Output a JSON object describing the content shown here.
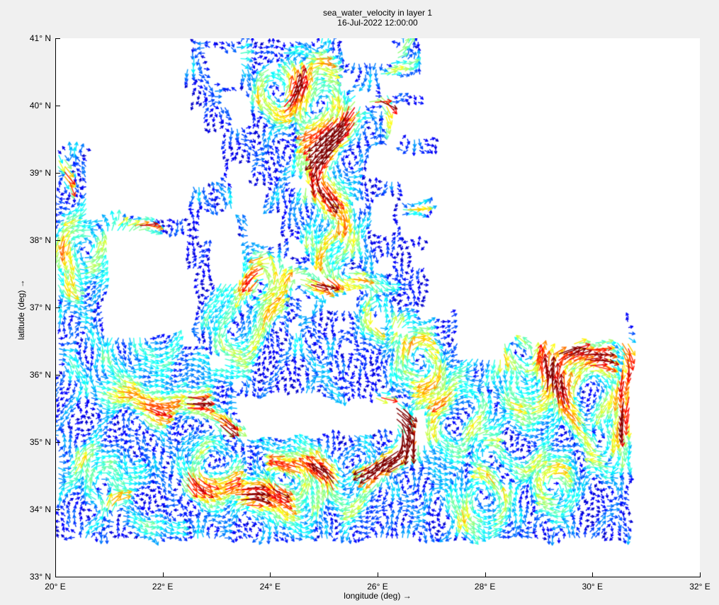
{
  "chart_data": {
    "type": "quiver",
    "title": "sea_water_velocity in layer 1",
    "subtitle": "16-Jul-2022 12:00:00",
    "colormap": "jet",
    "background": "#ffffff",
    "figure_background": "#f0f0f0",
    "x_axis": {
      "label": "longitude (deg) →",
      "min": 20,
      "max": 32,
      "ticks": [
        {
          "v": 20,
          "label": "20° E"
        },
        {
          "v": 22,
          "label": "22° E"
        },
        {
          "v": 24,
          "label": "24° E"
        },
        {
          "v": 26,
          "label": "26° E"
        },
        {
          "v": 28,
          "label": "28° E"
        },
        {
          "v": 30,
          "label": "30° E"
        },
        {
          "v": 32,
          "label": "32° E"
        }
      ]
    },
    "y_axis": {
      "label": "latitude (deg) →",
      "min": 33,
      "max": 41,
      "ticks": [
        {
          "v": 33,
          "label": "33° N"
        },
        {
          "v": 34,
          "label": "34° N"
        },
        {
          "v": 35,
          "label": "35° N"
        },
        {
          "v": 36,
          "label": "36° N"
        },
        {
          "v": 37,
          "label": "37° N"
        },
        {
          "v": 38,
          "label": "38° N"
        },
        {
          "v": 39,
          "label": "39° N"
        },
        {
          "v": 40,
          "label": "40° N"
        },
        {
          "v": 41,
          "label": "41° N"
        }
      ]
    },
    "grid": {
      "lon_step": 0.1,
      "lat_step": 0.08
    },
    "map": {
      "extent": {
        "lon": [
          20.07,
          30.72
        ],
        "lat": [
          33.58,
          40.97
        ]
      },
      "land": [
        [
          20.0,
          38.35,
          22.48,
          41.05
        ],
        [
          22.45,
          39.3,
          22.85,
          40.12
        ],
        [
          22.45,
          38.8,
          23.1,
          39.58
        ],
        [
          23.2,
          38.85,
          23.65,
          39.15
        ],
        [
          22.82,
          40.28,
          23.38,
          40.85
        ],
        [
          23.05,
          39.66,
          23.58,
          40.14
        ],
        [
          23.98,
          40.46,
          24.24,
          40.66
        ],
        [
          25.3,
          40.26,
          25.6,
          40.48
        ],
        [
          25.6,
          40.02,
          25.88,
          40.22
        ],
        [
          25.3,
          40.66,
          26.28,
          41.05
        ],
        [
          26.0,
          40.14,
          26.8,
          40.44
        ],
        [
          26.82,
          39.9,
          32,
          41.05
        ],
        [
          26.25,
          39.3,
          32,
          39.98
        ],
        [
          25.82,
          38.92,
          26.45,
          39.4
        ],
        [
          25.88,
          38.12,
          26.3,
          38.64
        ],
        [
          26.38,
          38.0,
          32,
          39.4
        ],
        [
          26.95,
          37.0,
          32,
          38.05
        ],
        [
          26.58,
          37.6,
          27.08,
          37.82
        ],
        [
          25.92,
          37.5,
          26.35,
          37.68
        ],
        [
          27.45,
          36.5,
          30.58,
          37.1
        ],
        [
          30.58,
          36.86,
          32,
          37.4
        ],
        [
          27.5,
          36.25,
          28.3,
          36.62
        ],
        [
          28.9,
          36.32,
          29.6,
          36.6
        ],
        [
          26.75,
          36.78,
          27.3,
          37.0
        ],
        [
          26.2,
          36.48,
          26.5,
          36.62
        ],
        [
          26.68,
          34.96,
          26.94,
          35.52
        ],
        [
          23.38,
          35.05,
          25.05,
          35.72
        ],
        [
          25.0,
          35.12,
          26.3,
          35.58
        ],
        [
          22.86,
          36.08,
          23.1,
          36.32
        ],
        [
          20.92,
          36.55,
          22.42,
          38.14
        ],
        [
          22.35,
          36.42,
          22.6,
          37.5
        ],
        [
          22.7,
          37.9,
          23.4,
          38.45
        ],
        [
          22.95,
          37.35,
          23.55,
          37.98
        ],
        [
          23.3,
          38.3,
          23.9,
          38.85
        ],
        [
          23.6,
          37.95,
          24.25,
          38.4
        ],
        [
          24.45,
          38.8,
          24.75,
          39.0
        ],
        [
          25.55,
          38.5,
          25.7,
          38.62
        ],
        [
          24.32,
          37.8,
          24.62,
          38.0
        ],
        [
          24.6,
          37.55,
          24.9,
          37.72
        ],
        [
          25.02,
          37.42,
          25.24,
          37.56
        ],
        [
          24.85,
          37.35,
          25.02,
          37.5
        ],
        [
          24.25,
          37.55,
          24.45,
          37.7
        ],
        [
          24.35,
          37.32,
          24.55,
          37.46
        ],
        [
          24.45,
          37.1,
          24.65,
          37.24
        ],
        [
          24.6,
          36.92,
          24.8,
          37.1
        ],
        [
          24.3,
          36.64,
          24.62,
          36.8
        ],
        [
          25.05,
          36.98,
          25.3,
          37.18
        ],
        [
          25.32,
          36.98,
          25.62,
          37.26
        ],
        [
          25.25,
          36.68,
          25.46,
          36.82
        ],
        [
          25.35,
          36.34,
          25.55,
          36.48
        ],
        [
          25.82,
          36.76,
          26.12,
          36.92
        ],
        [
          23.25,
          35.78,
          23.45,
          35.95
        ]
      ],
      "sea_overrides": [
        [
          20.04,
          38.28,
          20.62,
          39.38
        ],
        [
          25.8,
          39.96,
          26.2,
          40.12
        ],
        [
          26.02,
          39.6,
          26.24,
          40.12
        ],
        [
          26.45,
          39.3,
          27.15,
          39.52
        ],
        [
          26.45,
          38.32,
          27.0,
          38.58
        ],
        [
          20.95,
          38.1,
          22.72,
          38.3
        ],
        [
          22.45,
          40.25,
          22.8,
          40.6
        ],
        [
          22.55,
          39.95,
          23.0,
          40.32
        ],
        [
          22.75,
          39.6,
          23.2,
          40.02
        ]
      ]
    },
    "flow": {
      "base_amplitude": 0.09,
      "jets": [
        {
          "p": [
            [
              25.72,
              40.02
            ],
            [
              26.1,
              40.06
            ]
          ],
          "w": 0.07,
          "s": 1.0
        },
        {
          "p": [
            [
              26.12,
              40.08
            ],
            [
              26.16,
              39.68
            ]
          ],
          "w": 0.07,
          "s": 0.85
        },
        {
          "p": [
            [
              25.75,
              39.98
            ],
            [
              25.35,
              39.62
            ],
            [
              25.0,
              39.3
            ]
          ],
          "w": 0.2,
          "s": 0.6
        },
        {
          "p": [
            [
              25.0,
              39.3
            ],
            [
              24.85,
              38.7
            ],
            [
              24.82,
              38.1
            ],
            [
              25.0,
              37.6
            ]
          ],
          "w": 0.38,
          "s": 0.42
        },
        {
          "p": [
            [
              26.1,
              40.48
            ],
            [
              26.6,
              40.62
            ]
          ],
          "w": 0.1,
          "s": 0.5
        },
        {
          "p": [
            [
              24.2,
              37.42
            ],
            [
              24.9,
              37.36
            ],
            [
              25.6,
              37.42
            ],
            [
              26.2,
              37.3
            ]
          ],
          "w": 0.16,
          "s": 0.55
        },
        {
          "p": [
            [
              25.85,
              37.3
            ],
            [
              25.95,
              36.7
            ]
          ],
          "w": 0.12,
          "s": 0.45
        },
        {
          "p": [
            [
              26.05,
              35.6
            ],
            [
              26.45,
              35.42
            ],
            [
              26.6,
              35.05
            ],
            [
              26.4,
              34.75
            ],
            [
              25.9,
              34.6
            ]
          ],
          "w": 0.13,
          "s": 0.85
        },
        {
          "p": [
            [
              25.9,
              34.6
            ],
            [
              25.1,
              34.5
            ],
            [
              24.3,
              34.62
            ]
          ],
          "w": 0.18,
          "s": 0.5
        },
        {
          "p": [
            [
              22.5,
              35.6
            ],
            [
              23.1,
              35.3
            ],
            [
              23.7,
              35.1
            ]
          ],
          "w": 0.14,
          "s": 0.6
        },
        {
          "p": [
            [
              28.25,
              36.4
            ],
            [
              28.8,
              36.15
            ],
            [
              29.45,
              36.35
            ],
            [
              30.15,
              36.25
            ]
          ],
          "w": 0.18,
          "s": 0.5
        },
        {
          "p": [
            [
              30.62,
              36.4
            ],
            [
              30.6,
              35.2
            ]
          ],
          "w": 0.12,
          "s": 0.55
        },
        {
          "p": [
            [
              21.15,
              38.2
            ],
            [
              21.8,
              38.2
            ]
          ],
          "w": 0.08,
          "s": 0.6
        },
        {
          "p": [
            [
              20.12,
              39.2
            ],
            [
              20.25,
              38.85
            ]
          ],
          "w": 0.08,
          "s": 0.7
        },
        {
          "p": [
            [
              20.3,
              36.3
            ],
            [
              21.0,
              35.7
            ],
            [
              21.9,
              35.5
            ],
            [
              22.55,
              35.62
            ]
          ],
          "w": 0.25,
          "s": 0.4
        },
        {
          "p": [
            [
              20.55,
              33.7
            ],
            [
              21.1,
              34.1
            ],
            [
              21.55,
              34.55
            ]
          ],
          "w": 0.18,
          "s": 0.55
        },
        {
          "p": [
            [
              22.55,
              34.4
            ],
            [
              23.6,
              34.2
            ],
            [
              24.3,
              34.35
            ]
          ],
          "w": 0.22,
          "s": 0.4
        },
        {
          "p": [
            [
              26.5,
              38.45
            ],
            [
              26.95,
              38.48
            ]
          ],
          "w": 0.09,
          "s": 0.5
        },
        {
          "p": [
            [
              23.4,
              40.75
            ],
            [
              24.3,
              40.8
            ],
            [
              25.1,
              40.6
            ]
          ],
          "w": 0.15,
          "s": 0.35
        },
        {
          "p": [
            [
              23.95,
              37.75
            ],
            [
              23.8,
              37.4
            ]
          ],
          "w": 0.12,
          "s": 0.5
        },
        {
          "p": [
            [
              26.35,
              40.75
            ],
            [
              26.6,
              40.9
            ]
          ],
          "w": 0.09,
          "s": 0.45
        },
        {
          "p": [
            [
              20.15,
              38.0
            ],
            [
              20.3,
              37.3
            ]
          ],
          "w": 0.15,
          "s": 0.4
        },
        {
          "p": [
            [
              28.0,
              35.0
            ],
            [
              28.6,
              34.6
            ],
            [
              29.4,
              34.5
            ]
          ],
          "w": 0.2,
          "s": 0.35
        },
        {
          "p": [
            [
              21.3,
              33.8
            ],
            [
              22.3,
              33.75
            ]
          ],
          "w": 0.2,
          "s": 0.4
        },
        {
          "p": [
            [
              22.7,
              36.3
            ],
            [
              23.2,
              35.9
            ]
          ],
          "w": 0.15,
          "s": 0.45
        }
      ],
      "vortices": [
        {
          "c": [
            23.78,
            37.25
          ],
          "r": 0.26,
          "s": 0.55,
          "d": 1
        },
        {
          "c": [
            28.72,
            35.88
          ],
          "r": 0.4,
          "s": 0.52,
          "d": 1
        },
        {
          "c": [
            29.9,
            35.78
          ],
          "r": 0.42,
          "s": 0.5,
          "d": -1
        },
        {
          "c": [
            24.35,
            34.45
          ],
          "r": 0.38,
          "s": 0.45,
          "d": 1
        },
        {
          "c": [
            25.4,
            34.35
          ],
          "r": 0.3,
          "s": 0.4,
          "d": -1
        },
        {
          "c": [
            22.9,
            34.7
          ],
          "r": 0.32,
          "s": 0.4,
          "d": 1
        },
        {
          "c": [
            20.9,
            34.3
          ],
          "r": 0.35,
          "s": 0.38,
          "d": -1
        },
        {
          "c": [
            21.9,
            36.6
          ],
          "r": 0.4,
          "s": 0.35,
          "d": 1
        },
        {
          "c": [
            25.1,
            38.4
          ],
          "r": 0.35,
          "s": 0.38,
          "d": -1
        },
        {
          "c": [
            24.2,
            40.2
          ],
          "r": 0.28,
          "s": 0.42,
          "d": 1
        },
        {
          "c": [
            26.0,
            36.95
          ],
          "r": 0.3,
          "s": 0.4,
          "d": 1
        },
        {
          "c": [
            27.55,
            35.3
          ],
          "r": 0.38,
          "s": 0.42,
          "d": 1
        },
        {
          "c": [
            30.25,
            34.9
          ],
          "r": 0.32,
          "s": 0.4,
          "d": -1
        },
        {
          "c": [
            20.6,
            37.9
          ],
          "r": 0.3,
          "s": 0.35,
          "d": 1
        },
        {
          "c": [
            24.85,
            39.95
          ],
          "r": 0.33,
          "s": 0.4,
          "d": -1
        },
        {
          "c": [
            27.9,
            34.2
          ],
          "r": 0.35,
          "s": 0.38,
          "d": 1
        },
        {
          "c": [
            29.3,
            34.4
          ],
          "r": 0.3,
          "s": 0.35,
          "d": -1
        },
        {
          "c": [
            23.4,
            36.6
          ],
          "r": 0.35,
          "s": 0.4,
          "d": 1
        },
        {
          "c": [
            26.7,
            36.2
          ],
          "r": 0.3,
          "s": 0.38,
          "d": -1
        }
      ]
    }
  }
}
